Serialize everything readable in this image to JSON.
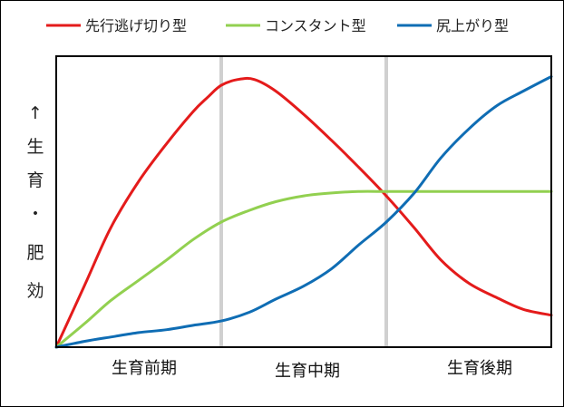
{
  "chart_data": {
    "type": "line",
    "legend": {
      "position": "top",
      "entries": [
        "先行逃げ切り型",
        "コンスタント型",
        "尻上がり型"
      ]
    },
    "y_axis": {
      "arrow": "↑",
      "label_chars": [
        "生",
        "育",
        "・",
        "肥",
        "効"
      ],
      "ticks": "none"
    },
    "x_axis": {
      "phases": [
        "生育前期",
        "生育中期",
        "生育後期"
      ],
      "phase_boundaries": [
        1,
        2
      ],
      "range": [
        0,
        3
      ]
    },
    "ylim": [
      0,
      1
    ],
    "grid": false,
    "series": [
      {
        "name": "先行逃げ切り型",
        "color": "#e41b1b",
        "x": [
          0,
          0.17,
          0.33,
          0.5,
          0.67,
          0.83,
          0.92,
          1.0,
          1.1,
          1.2,
          1.33,
          1.5,
          1.67,
          1.83,
          2.0,
          2.17,
          2.33,
          2.5,
          2.67,
          2.83,
          3.0
        ],
        "y": [
          0,
          0.21,
          0.41,
          0.57,
          0.7,
          0.81,
          0.86,
          0.9,
          0.92,
          0.92,
          0.88,
          0.8,
          0.71,
          0.62,
          0.52,
          0.41,
          0.3,
          0.22,
          0.17,
          0.13,
          0.11
        ]
      },
      {
        "name": "コンスタント型",
        "color": "#92d050",
        "x": [
          0,
          0.17,
          0.33,
          0.5,
          0.67,
          0.83,
          1.0,
          1.17,
          1.33,
          1.5,
          1.67,
          1.83,
          2.0,
          2.17,
          2.33,
          2.5,
          2.67,
          2.83,
          3.0
        ],
        "y": [
          0,
          0.08,
          0.16,
          0.23,
          0.3,
          0.37,
          0.43,
          0.47,
          0.5,
          0.52,
          0.53,
          0.535,
          0.535,
          0.535,
          0.535,
          0.535,
          0.535,
          0.535,
          0.535
        ]
      },
      {
        "name": "尻上がり型",
        "color": "#0f6db4",
        "x": [
          0,
          0.17,
          0.33,
          0.5,
          0.67,
          0.83,
          1.0,
          1.17,
          1.33,
          1.5,
          1.67,
          1.83,
          2.0,
          2.17,
          2.33,
          2.5,
          2.67,
          2.83,
          3.0
        ],
        "y": [
          0,
          0.02,
          0.035,
          0.05,
          0.06,
          0.075,
          0.09,
          0.12,
          0.165,
          0.21,
          0.27,
          0.35,
          0.43,
          0.53,
          0.65,
          0.75,
          0.83,
          0.88,
          0.93
        ]
      }
    ]
  }
}
